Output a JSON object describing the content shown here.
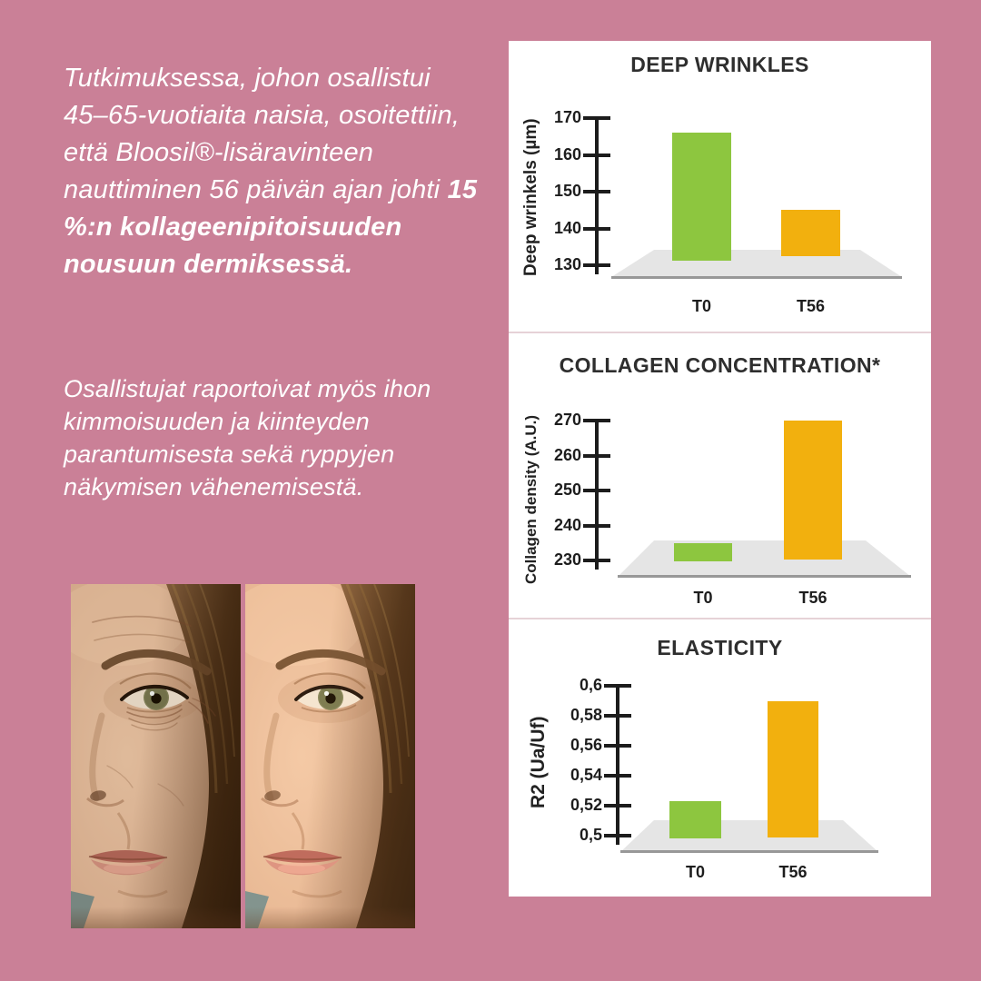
{
  "colors": {
    "background": "#ca8097",
    "panel": "#ffffff",
    "bar_green": "#8dc63f",
    "bar_yellow": "#f2b00e",
    "floor_gray": "#e5e5e5",
    "axis_dark": "#1c1c1c",
    "intro_text": "#ffffff"
  },
  "intro": {
    "p1_regular": "Tutkimuksessa, johon osallistui 45–65-vuotiaita naisia, osoitettiin, että Bloosil®-lisäravinteen nauttiminen 56 päivän ajan johti ",
    "p1_bold": "15 %:n kollageenipitoisuuden nousuun dermiksessä.",
    "p2": "Osallistujat raportoivat myös ihon kimmoisuuden ja kiinteyden parantumisesta sekä ryppyjen näkymisen vähenemisestä."
  },
  "chart_data": [
    {
      "type": "bar",
      "title": "DEEP WRINKLES",
      "ylabel": "Deep wrinkels (µm)",
      "categories": [
        "T0",
        "T56"
      ],
      "values": [
        166,
        145
      ],
      "ylim": [
        130,
        170
      ],
      "ytick_labels": [
        "170",
        "160",
        "150",
        "140",
        "130"
      ],
      "bar_colors": [
        "#8dc63f",
        "#f2b00e"
      ],
      "grid": false,
      "legend": "none"
    },
    {
      "type": "bar",
      "title": "COLLAGEN CONCENTRATION*",
      "ylabel": "Collagen density (A.U.)",
      "categories": [
        "T0",
        "T56"
      ],
      "values": [
        235,
        270
      ],
      "ylim": [
        230,
        270
      ],
      "ytick_labels": [
        "270",
        "260",
        "250",
        "240",
        "230"
      ],
      "bar_colors": [
        "#8dc63f",
        "#f2b00e"
      ],
      "grid": false,
      "legend": "none"
    },
    {
      "type": "bar",
      "title": "ELASTICITY",
      "ylabel": "R2 (Ua/Uf)",
      "categories": [
        "T0",
        "T56"
      ],
      "values": [
        0.523,
        0.59
      ],
      "ylim": [
        0.5,
        0.6
      ],
      "ytick_labels": [
        "0,6",
        "0,58",
        "0,56",
        "0,54",
        "0,52",
        "0,5"
      ],
      "bar_colors": [
        "#8dc63f",
        "#f2b00e"
      ],
      "grid": false,
      "legend": "none"
    }
  ]
}
